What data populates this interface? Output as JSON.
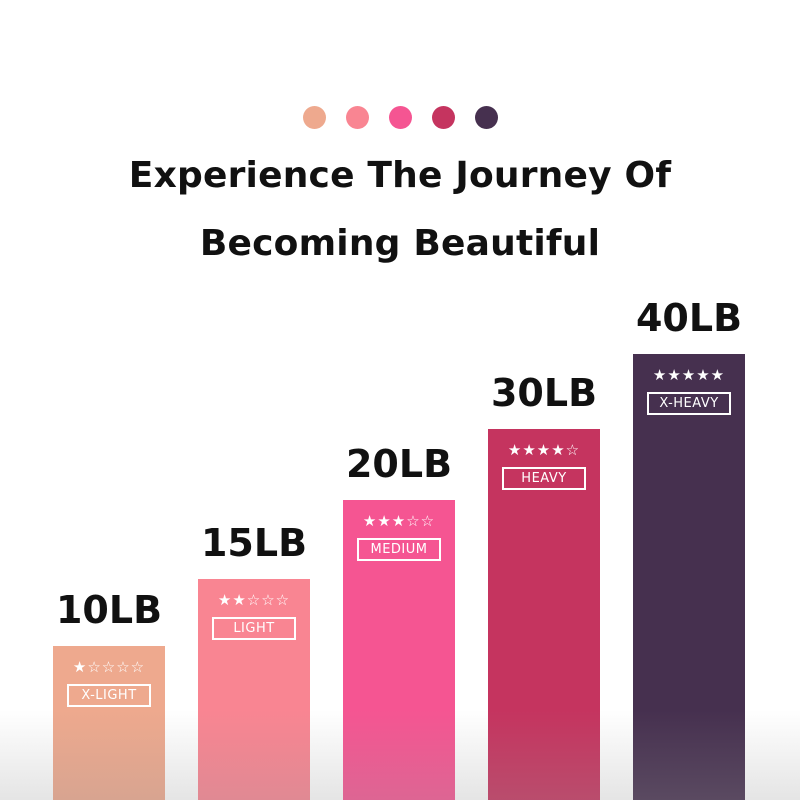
{
  "dots": [
    "#eea98e",
    "#f98592",
    "#f55592",
    "#c5345f",
    "#46304f"
  ],
  "title_line1": "Experience The Journey Of",
  "title_line2": "Becoming Beautiful",
  "bands": [
    {
      "weight": "10LB",
      "stars": "★☆☆☆☆",
      "rating": 1,
      "level": "X-LIGHT",
      "color": "#eea98e"
    },
    {
      "weight": "15LB",
      "stars": "★★☆☆☆",
      "rating": 2,
      "level": "LIGHT",
      "color": "#f98592"
    },
    {
      "weight": "20LB",
      "stars": "★★★☆☆",
      "rating": 3,
      "level": "MEDIUM",
      "color": "#f55592"
    },
    {
      "weight": "30LB",
      "stars": "★★★★☆",
      "rating": 4,
      "level": "HEAVY",
      "color": "#c5345f"
    },
    {
      "weight": "40LB",
      "stars": "★★★★★",
      "rating": 5,
      "level": "X-HEAVY",
      "color": "#46304f"
    }
  ]
}
